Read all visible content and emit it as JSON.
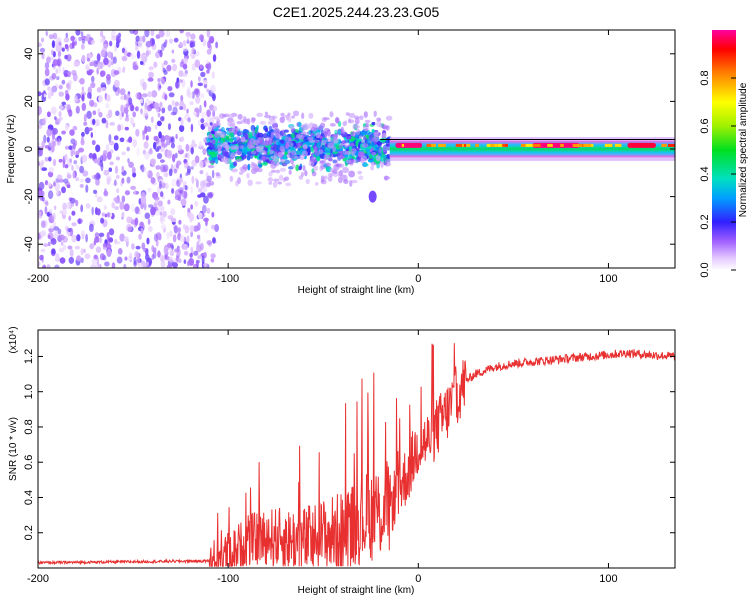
{
  "title": "C2E1.2025.244.23.23.G05",
  "chart_data": [
    {
      "type": "heatmap",
      "xlabel": "Height of straight line (km)",
      "ylabel": "Frequency (Hz)",
      "xlim": [
        -200,
        135
      ],
      "ylim": [
        -50,
        50
      ],
      "xticks": [
        -200,
        -100,
        0,
        100
      ],
      "xtick_labels": [
        "-200",
        "-100",
        "0",
        "100"
      ],
      "yticks": [
        -40,
        -20,
        0,
        20,
        40
      ],
      "ytick_labels": [
        "-40",
        "-20",
        "0",
        "20",
        "40"
      ],
      "colorbar": {
        "label": "Normalized spectral amplitude",
        "range": [
          0,
          1
        ],
        "ticks": [
          0,
          0.2,
          0.4,
          0.6,
          0.8
        ],
        "tick_labels": [
          "0.0",
          "0.2",
          "0.4",
          "0.6",
          "0.8"
        ]
      },
      "regions": [
        {
          "name": "noise",
          "x_range": [
            -200,
            -106
          ],
          "freq_range": [
            -50,
            50
          ],
          "amplitude": 0.12
        },
        {
          "name": "scattered-signal",
          "x_range": [
            -110,
            -15
          ],
          "freq_range": [
            -10,
            12
          ],
          "amplitude": 0.35
        },
        {
          "name": "outlier-blob",
          "x": -24,
          "freq": -20,
          "amplitude": 0.15
        },
        {
          "name": "coherent-line",
          "x_range": [
            -15,
            135
          ],
          "freq_range": [
            -2,
            2
          ],
          "amplitude": 0.7
        },
        {
          "name": "peak-1",
          "x_range": [
            -12,
            2
          ],
          "freq": 1.5,
          "amplitude": 0.98
        },
        {
          "name": "peak-2",
          "x_range": [
            60,
            85
          ],
          "freq": 1.5,
          "amplitude": 0.98
        },
        {
          "name": "peak-3",
          "x_range": [
            110,
            125
          ],
          "freq": 1.5,
          "amplitude": 0.95
        }
      ]
    },
    {
      "type": "line",
      "xlabel": "Height of straight line (km)",
      "ylabel": "SNR (10 * v/v)",
      "y_scale_label": "(x10⁴)",
      "xlim": [
        -200,
        135
      ],
      "ylim": [
        0,
        1.35
      ],
      "xticks": [
        -200,
        -100,
        0,
        100
      ],
      "xtick_labels": [
        "-200",
        "-100",
        "0",
        "100"
      ],
      "yticks": [
        0.2,
        0.4,
        0.6,
        0.8,
        1.0,
        1.2
      ],
      "ytick_labels": [
        "0.2",
        "0.4",
        "0.6",
        "0.8",
        "1.0",
        "1.2"
      ],
      "series": [
        {
          "name": "SNR",
          "color": "#e83030",
          "x": [
            -200,
            -110,
            -100,
            -90,
            -80,
            -70,
            -60,
            -50,
            -40,
            -30,
            -20,
            -15,
            -10,
            -5,
            0,
            5,
            10,
            15,
            20,
            25,
            30,
            40,
            50,
            60,
            70,
            80,
            90,
            100,
            110,
            120,
            135
          ],
          "y": [
            0.03,
            0.04,
            0.08,
            0.15,
            0.18,
            0.16,
            0.15,
            0.18,
            0.2,
            0.28,
            0.32,
            0.35,
            0.45,
            0.55,
            0.7,
            0.72,
            0.8,
            0.88,
            0.98,
            1.06,
            1.1,
            1.14,
            1.16,
            1.17,
            1.18,
            1.19,
            1.2,
            1.21,
            1.22,
            1.21,
            1.2
          ]
        }
      ]
    }
  ],
  "colors": {
    "line": "#e83030",
    "frame": "#000000"
  }
}
